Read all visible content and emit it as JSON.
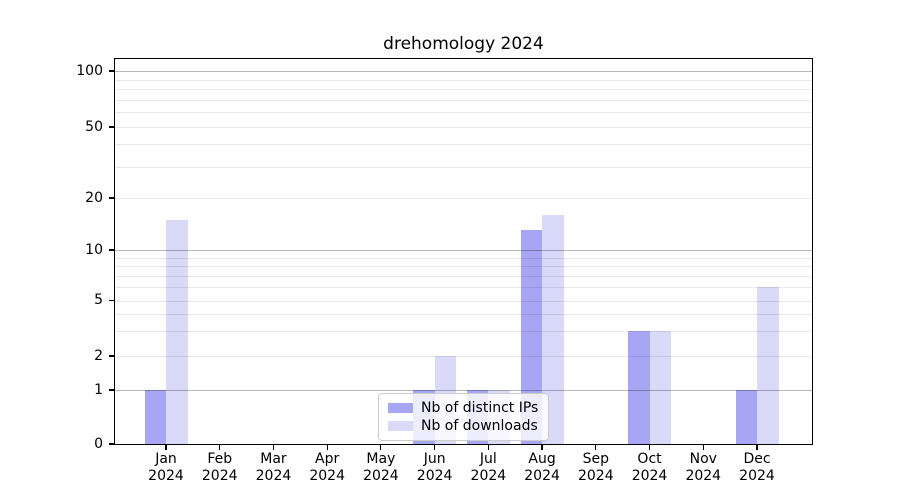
{
  "chart_data": {
    "type": "bar",
    "title": "drehomology 2024",
    "categories": [
      "Jan 2024",
      "Feb 2024",
      "Mar 2024",
      "Apr 2024",
      "May 2024",
      "Jun 2024",
      "Jul 2024",
      "Aug 2024",
      "Sep 2024",
      "Oct 2024",
      "Nov 2024",
      "Dec 2024"
    ],
    "x_tick_months": [
      "Jan",
      "Feb",
      "Mar",
      "Apr",
      "May",
      "Jun",
      "Jul",
      "Aug",
      "Sep",
      "Oct",
      "Nov",
      "Dec"
    ],
    "x_tick_year": "2024",
    "series": [
      {
        "name": "Nb of distinct IPs",
        "color": "#a6a6f5",
        "values": [
          1,
          0,
          0,
          0,
          0,
          1,
          1,
          13,
          0,
          3,
          0,
          1
        ]
      },
      {
        "name": "Nb of downloads",
        "color": "#d9d9f8",
        "values": [
          15,
          0,
          0,
          0,
          0,
          2,
          1,
          16,
          0,
          3,
          0,
          6
        ]
      }
    ],
    "yscale": "log",
    "y_axis_ticks": [
      0,
      1,
      2,
      5,
      10,
      20,
      50,
      100
    ],
    "y_minor_gridlines": [
      2,
      3,
      4,
      5,
      6,
      7,
      8,
      9,
      20,
      30,
      40,
      50,
      60,
      70,
      80,
      90
    ],
    "y_major_gridlines": [
      1,
      10,
      100
    ],
    "ylim": [
      0,
      120
    ],
    "grid": "on",
    "legend": {
      "position": "lower center",
      "items": [
        "Nb of distinct IPs",
        "Nb of downloads"
      ]
    },
    "colors": {
      "grid_major": "#b8b8b8",
      "grid_minor": "#ececec",
      "axis": "#000000",
      "text": "#000000",
      "background": "#ffffff"
    }
  }
}
